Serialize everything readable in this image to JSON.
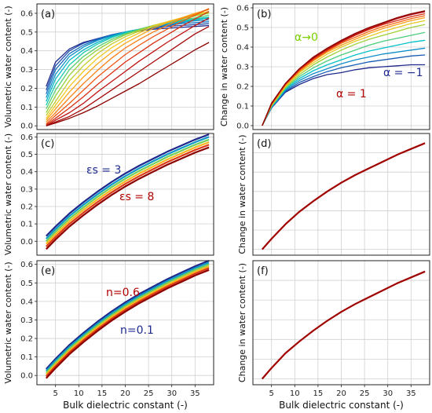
{
  "figure": {
    "shared_xlabel": "Bulk dielectric constant (-)",
    "x_ticks": [
      5,
      10,
      15,
      20,
      25,
      30,
      35
    ],
    "grid": true,
    "panels": [
      {
        "id": "a",
        "label": "(a)",
        "ylabel": "Volumetric water content (-)",
        "ylim": [
          -0.02,
          0.65
        ],
        "yticks": [
          0.0,
          0.1,
          0.2,
          0.3,
          0.4,
          0.5,
          0.6
        ],
        "annotations": []
      },
      {
        "id": "b",
        "label": "(b)",
        "ylabel": "Change in water content (-)",
        "ylim": [
          -0.02,
          0.62
        ],
        "yticks": [
          0.0,
          0.1,
          0.2,
          0.3,
          0.4,
          0.5,
          0.6
        ],
        "annotations": [
          {
            "text": "α→0",
            "color": "#7bd000"
          },
          {
            "text": "α = −1",
            "color": "#1f2a8f"
          },
          {
            "text": "α = 1",
            "color": "#b00000"
          }
        ]
      },
      {
        "id": "c",
        "label": "(c)",
        "ylabel": "Volumetric water content (-)",
        "ylim": [
          -0.08,
          0.62
        ],
        "yticks": [
          0.0,
          0.1,
          0.2,
          0.3,
          0.4,
          0.5,
          0.6
        ],
        "annotations": [
          {
            "text": "εs = 3",
            "color": "#1f2a8f"
          },
          {
            "text": "εs = 8",
            "color": "#b00000"
          }
        ]
      },
      {
        "id": "d",
        "label": "(d)",
        "ylabel": "Change in water content (-)",
        "ylim": [
          -0.03,
          0.6
        ],
        "yticks": [],
        "annotations": []
      },
      {
        "id": "e",
        "label": "(e)",
        "ylabel": "Volumetric water content (-)",
        "ylim": [
          -0.05,
          0.62
        ],
        "yticks": [
          0.0,
          0.1,
          0.2,
          0.3,
          0.4,
          0.5,
          0.6
        ],
        "annotations": [
          {
            "text": "n=0.6",
            "color": "#b00000"
          },
          {
            "text": "n=0.1",
            "color": "#1f2a8f"
          }
        ]
      },
      {
        "id": "f",
        "label": "(f)",
        "ylabel": "Change in water content (-)",
        "ylim": [
          -0.03,
          0.6
        ],
        "yticks": [],
        "annotations": []
      }
    ]
  },
  "chart_data": [
    {
      "panel": "a",
      "type": "line",
      "xlim": [
        1,
        39
      ],
      "ylim": [
        -0.02,
        0.65
      ],
      "x": [
        3,
        5,
        8,
        11,
        14,
        17,
        20,
        23,
        26,
        29,
        32,
        35,
        38
      ],
      "series_style": "rainbow (blue to red)",
      "series": [
        {
          "values": [
            0.21,
            0.34,
            0.41,
            0.445,
            0.465,
            0.48,
            0.495,
            0.505,
            0.515,
            0.52,
            0.525,
            0.53,
            0.535
          ]
        },
        {
          "values": [
            0.19,
            0.32,
            0.4,
            0.44,
            0.465,
            0.485,
            0.5,
            0.51,
            0.52,
            0.53,
            0.535,
            0.54,
            0.545
          ]
        },
        {
          "values": [
            0.17,
            0.3,
            0.385,
            0.43,
            0.46,
            0.485,
            0.5,
            0.515,
            0.525,
            0.535,
            0.545,
            0.55,
            0.555
          ]
        },
        {
          "values": [
            0.15,
            0.275,
            0.37,
            0.42,
            0.455,
            0.48,
            0.5,
            0.515,
            0.53,
            0.54,
            0.55,
            0.56,
            0.565
          ]
        },
        {
          "values": [
            0.13,
            0.25,
            0.35,
            0.405,
            0.445,
            0.475,
            0.5,
            0.515,
            0.53,
            0.545,
            0.555,
            0.565,
            0.575
          ]
        },
        {
          "values": [
            0.11,
            0.22,
            0.325,
            0.39,
            0.435,
            0.47,
            0.495,
            0.515,
            0.535,
            0.55,
            0.56,
            0.57,
            0.58
          ]
        },
        {
          "values": [
            0.09,
            0.19,
            0.3,
            0.37,
            0.42,
            0.46,
            0.49,
            0.515,
            0.535,
            0.55,
            0.565,
            0.575,
            0.59
          ]
        },
        {
          "values": [
            0.07,
            0.16,
            0.27,
            0.35,
            0.405,
            0.45,
            0.485,
            0.51,
            0.535,
            0.555,
            0.57,
            0.585,
            0.6
          ]
        },
        {
          "values": [
            0.055,
            0.13,
            0.24,
            0.32,
            0.385,
            0.435,
            0.475,
            0.505,
            0.535,
            0.555,
            0.575,
            0.59,
            0.605
          ]
        },
        {
          "values": [
            0.04,
            0.11,
            0.21,
            0.29,
            0.36,
            0.415,
            0.46,
            0.495,
            0.53,
            0.555,
            0.575,
            0.595,
            0.61
          ]
        },
        {
          "values": [
            0.03,
            0.09,
            0.18,
            0.26,
            0.33,
            0.39,
            0.44,
            0.48,
            0.52,
            0.55,
            0.575,
            0.6,
            0.62
          ]
        },
        {
          "values": [
            0.02,
            0.07,
            0.15,
            0.225,
            0.295,
            0.36,
            0.415,
            0.46,
            0.5,
            0.535,
            0.57,
            0.595,
            0.625
          ]
        },
        {
          "values": [
            0.01,
            0.055,
            0.12,
            0.19,
            0.26,
            0.32,
            0.38,
            0.43,
            0.475,
            0.515,
            0.555,
            0.59,
            0.625
          ]
        },
        {
          "values": [
            0.005,
            0.04,
            0.095,
            0.155,
            0.22,
            0.28,
            0.34,
            0.39,
            0.44,
            0.485,
            0.53,
            0.57,
            0.61
          ]
        },
        {
          "values": [
            0.0,
            0.03,
            0.07,
            0.12,
            0.18,
            0.235,
            0.29,
            0.345,
            0.395,
            0.445,
            0.49,
            0.535,
            0.575
          ]
        },
        {
          "values": [
            0.0,
            0.02,
            0.05,
            0.09,
            0.14,
            0.19,
            0.24,
            0.29,
            0.34,
            0.39,
            0.44,
            0.49,
            0.53
          ]
        },
        {
          "values": [
            0.0,
            0.015,
            0.04,
            0.07,
            0.105,
            0.145,
            0.185,
            0.225,
            0.27,
            0.315,
            0.36,
            0.405,
            0.445
          ]
        }
      ]
    },
    {
      "panel": "b",
      "type": "line",
      "xlim": [
        1,
        39
      ],
      "ylim": [
        -0.02,
        0.62
      ],
      "x": [
        3,
        5,
        8,
        11,
        14,
        17,
        20,
        23,
        26,
        29,
        32,
        35,
        38
      ],
      "series_style": "rainbow (blue to red)",
      "series": [
        {
          "values": [
            0.0,
            0.09,
            0.17,
            0.21,
            0.24,
            0.26,
            0.27,
            0.285,
            0.295,
            0.3,
            0.305,
            0.31,
            0.31
          ]
        },
        {
          "values": [
            0.0,
            0.09,
            0.175,
            0.22,
            0.25,
            0.275,
            0.295,
            0.31,
            0.325,
            0.335,
            0.345,
            0.355,
            0.36
          ]
        },
        {
          "values": [
            0.0,
            0.095,
            0.18,
            0.23,
            0.265,
            0.29,
            0.315,
            0.335,
            0.35,
            0.365,
            0.375,
            0.385,
            0.395
          ]
        },
        {
          "values": [
            0.0,
            0.095,
            0.185,
            0.24,
            0.28,
            0.31,
            0.335,
            0.36,
            0.38,
            0.395,
            0.41,
            0.425,
            0.435
          ]
        },
        {
          "values": [
            0.0,
            0.1,
            0.19,
            0.25,
            0.295,
            0.33,
            0.36,
            0.385,
            0.41,
            0.43,
            0.445,
            0.46,
            0.475
          ]
        },
        {
          "values": [
            0.0,
            0.1,
            0.195,
            0.26,
            0.31,
            0.35,
            0.385,
            0.415,
            0.44,
            0.46,
            0.48,
            0.5,
            0.515
          ]
        },
        {
          "values": [
            0.0,
            0.105,
            0.2,
            0.27,
            0.32,
            0.365,
            0.4,
            0.43,
            0.455,
            0.48,
            0.5,
            0.52,
            0.535
          ]
        },
        {
          "values": [
            0.0,
            0.105,
            0.205,
            0.275,
            0.33,
            0.375,
            0.41,
            0.44,
            0.47,
            0.495,
            0.515,
            0.535,
            0.55
          ]
        },
        {
          "values": [
            0.0,
            0.11,
            0.21,
            0.28,
            0.335,
            0.38,
            0.42,
            0.45,
            0.48,
            0.505,
            0.525,
            0.545,
            0.56
          ]
        },
        {
          "values": [
            0.0,
            0.11,
            0.21,
            0.285,
            0.34,
            0.385,
            0.425,
            0.46,
            0.49,
            0.515,
            0.535,
            0.555,
            0.57
          ]
        },
        {
          "values": [
            0.0,
            0.11,
            0.215,
            0.29,
            0.345,
            0.39,
            0.43,
            0.465,
            0.495,
            0.52,
            0.545,
            0.565,
            0.58
          ]
        },
        {
          "values": [
            0.0,
            0.115,
            0.215,
            0.29,
            0.35,
            0.395,
            0.435,
            0.47,
            0.5,
            0.525,
            0.55,
            0.57,
            0.585
          ]
        }
      ]
    },
    {
      "panel": "c",
      "type": "line",
      "xlim": [
        1,
        39
      ],
      "ylim": [
        -0.08,
        0.62
      ],
      "x": [
        3,
        5,
        8,
        11,
        14,
        17,
        20,
        23,
        26,
        29,
        32,
        35,
        38
      ],
      "series_style": "rainbow band (εs = 3 blue, εs = 8 red)",
      "series": [
        {
          "values": [
            0.03,
            0.085,
            0.16,
            0.225,
            0.285,
            0.34,
            0.39,
            0.435,
            0.475,
            0.515,
            0.55,
            0.585,
            0.615
          ]
        },
        {
          "values": [
            0.015,
            0.07,
            0.145,
            0.21,
            0.27,
            0.325,
            0.375,
            0.42,
            0.46,
            0.5,
            0.535,
            0.57,
            0.6
          ]
        },
        {
          "values": [
            0.0,
            0.055,
            0.13,
            0.195,
            0.255,
            0.31,
            0.36,
            0.405,
            0.445,
            0.485,
            0.52,
            0.555,
            0.585
          ]
        },
        {
          "values": [
            -0.015,
            0.04,
            0.115,
            0.18,
            0.24,
            0.295,
            0.345,
            0.39,
            0.43,
            0.47,
            0.505,
            0.54,
            0.57
          ]
        },
        {
          "values": [
            -0.03,
            0.025,
            0.1,
            0.165,
            0.225,
            0.28,
            0.33,
            0.375,
            0.415,
            0.455,
            0.49,
            0.525,
            0.555
          ]
        },
        {
          "values": [
            -0.045,
            0.01,
            0.085,
            0.15,
            0.21,
            0.265,
            0.315,
            0.36,
            0.4,
            0.44,
            0.475,
            0.51,
            0.54
          ]
        }
      ]
    },
    {
      "panel": "d",
      "type": "line",
      "xlim": [
        1,
        39
      ],
      "ylim": [
        -0.03,
        0.6
      ],
      "x": [
        3,
        5,
        8,
        11,
        14,
        17,
        20,
        23,
        26,
        29,
        32,
        35,
        38
      ],
      "series": [
        {
          "color": "#a00000",
          "values": [
            0.0,
            0.055,
            0.13,
            0.195,
            0.25,
            0.3,
            0.345,
            0.385,
            0.42,
            0.455,
            0.49,
            0.52,
            0.55
          ]
        }
      ]
    },
    {
      "panel": "e",
      "type": "line",
      "xlim": [
        1,
        39
      ],
      "ylim": [
        -0.05,
        0.62
      ],
      "x": [
        3,
        5,
        8,
        11,
        14,
        17,
        20,
        23,
        26,
        29,
        32,
        35,
        38
      ],
      "series_style": "rainbow band (n=0.6 red on top, n=0.1 blue below)",
      "series": [
        {
          "values": [
            0.035,
            0.09,
            0.165,
            0.23,
            0.29,
            0.345,
            0.395,
            0.44,
            0.48,
            0.52,
            0.555,
            0.59,
            0.62
          ]
        },
        {
          "values": [
            0.025,
            0.08,
            0.155,
            0.22,
            0.28,
            0.335,
            0.385,
            0.43,
            0.47,
            0.51,
            0.545,
            0.58,
            0.61
          ]
        },
        {
          "values": [
            0.015,
            0.07,
            0.145,
            0.21,
            0.27,
            0.325,
            0.375,
            0.42,
            0.46,
            0.5,
            0.535,
            0.57,
            0.6
          ]
        },
        {
          "values": [
            0.005,
            0.06,
            0.135,
            0.2,
            0.26,
            0.315,
            0.365,
            0.41,
            0.45,
            0.49,
            0.525,
            0.56,
            0.59
          ]
        },
        {
          "values": [
            -0.005,
            0.05,
            0.125,
            0.19,
            0.25,
            0.305,
            0.355,
            0.4,
            0.44,
            0.48,
            0.515,
            0.55,
            0.58
          ]
        },
        {
          "values": [
            -0.015,
            0.04,
            0.115,
            0.18,
            0.24,
            0.295,
            0.345,
            0.39,
            0.43,
            0.47,
            0.505,
            0.54,
            0.57
          ]
        }
      ]
    },
    {
      "panel": "f",
      "type": "line",
      "xlim": [
        1,
        39
      ],
      "ylim": [
        -0.03,
        0.6
      ],
      "x": [
        3,
        5,
        8,
        11,
        14,
        17,
        20,
        23,
        26,
        29,
        32,
        35,
        38
      ],
      "series": [
        {
          "color": "#a00000",
          "values": [
            0.0,
            0.055,
            0.13,
            0.19,
            0.245,
            0.295,
            0.34,
            0.38,
            0.415,
            0.45,
            0.485,
            0.515,
            0.545
          ]
        }
      ]
    }
  ]
}
